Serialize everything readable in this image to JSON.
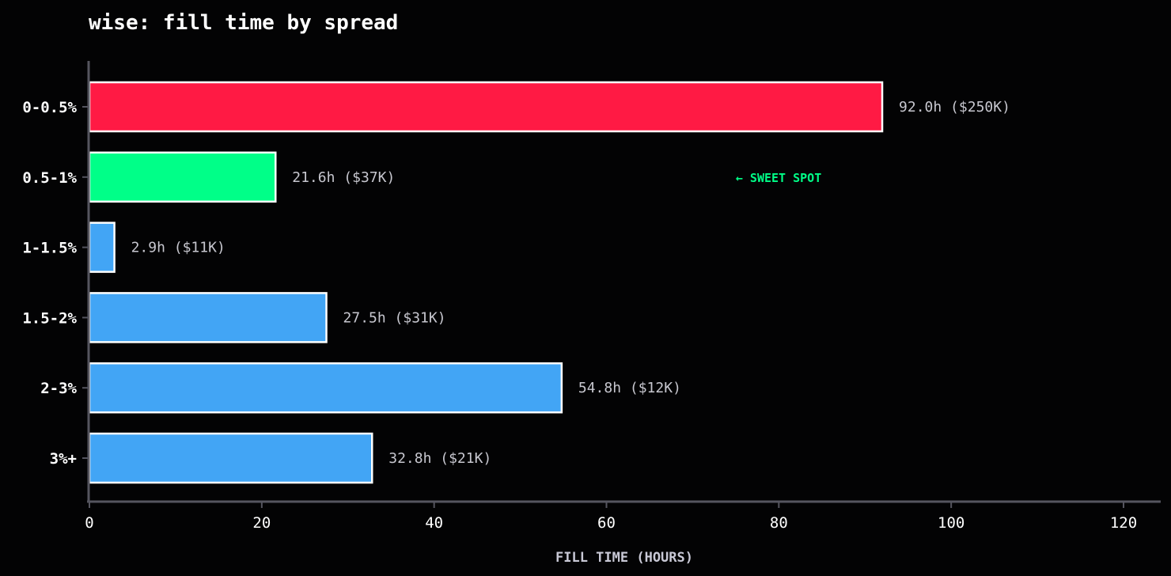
{
  "chart_data": {
    "type": "bar",
    "orientation": "horizontal",
    "title": "wise: fill time by spread",
    "xlabel": "FILL TIME (HOURS)",
    "ylabel": "",
    "xlim": [
      0,
      124
    ],
    "xticks": [
      0,
      20,
      40,
      60,
      80,
      100,
      120
    ],
    "grid": false,
    "categories": [
      "0-0.5%",
      "0.5-1%",
      "1-1.5%",
      "1.5-2%",
      "2-3%",
      "3%+"
    ],
    "values": [
      92.0,
      21.6,
      2.9,
      27.5,
      54.8,
      32.8
    ],
    "data_labels": [
      "92.0h ($250K)",
      "21.6h ($37K)",
      "2.9h ($11K)",
      "27.5h ($31K)",
      "54.8h ($12K)",
      "32.8h ($21K)"
    ],
    "bar_colors": [
      "#ff1a44",
      "#00ff88",
      "#42a5f5",
      "#42a5f5",
      "#42a5f5",
      "#42a5f5"
    ],
    "annotation": {
      "text": "← SWEET SPOT",
      "category": "0.5-1%",
      "x": 75,
      "color": "#00ff88"
    }
  },
  "colors": {
    "background": "#030304",
    "axis": "#55555f",
    "bar_edge": "#ffffff"
  }
}
